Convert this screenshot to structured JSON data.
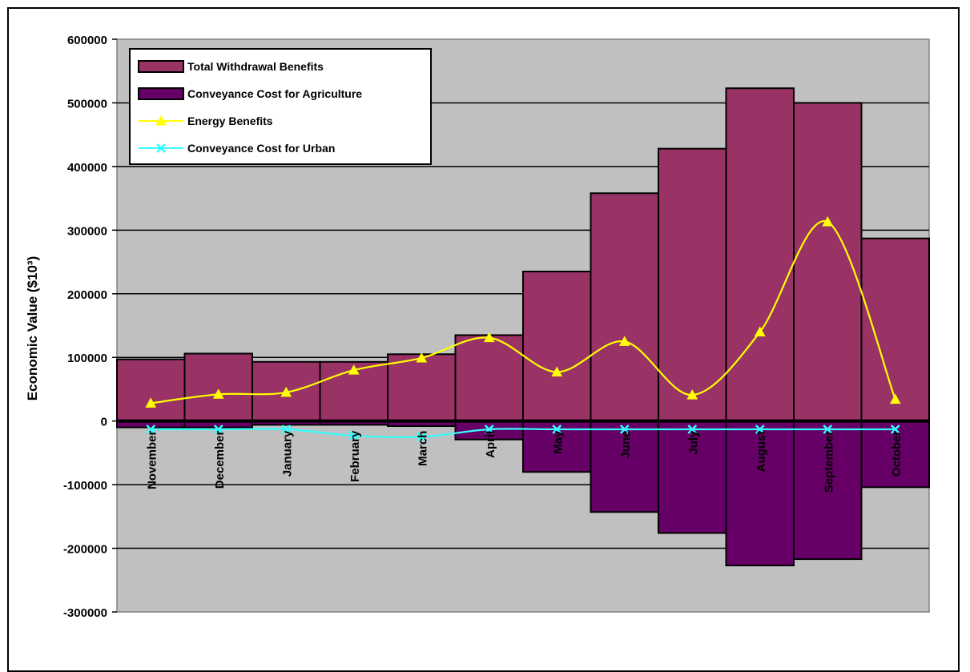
{
  "chart_data": {
    "type": "bar",
    "categories": [
      "November",
      "December",
      "January",
      "February",
      "March",
      "April",
      "May",
      "June",
      "July",
      "August",
      "September",
      "October"
    ],
    "ylabel": "Economic Value  ($10³)",
    "ylim": [
      -300000,
      600000
    ],
    "yticks": [
      600000,
      500000,
      400000,
      300000,
      200000,
      100000,
      0,
      -100000,
      -200000,
      -300000
    ],
    "ytick_labels": [
      "600000",
      "500000",
      "400000",
      "300000",
      "200000",
      "100000",
      "0",
      "-100000",
      "-200000",
      "-300000"
    ],
    "grid": true,
    "legend_position": "top-left",
    "series": [
      {
        "name": "Total Withdrawal Benefits",
        "kind": "bar",
        "color": "#993366",
        "values": [
          97000,
          106000,
          93000,
          93000,
          105000,
          135000,
          235000,
          358000,
          428000,
          523000,
          500000,
          287000
        ]
      },
      {
        "name": "Conveyance Cost for Agriculture",
        "kind": "bar",
        "color": "#660066",
        "values": [
          -10000,
          -10000,
          -6000,
          -6000,
          -8000,
          -29000,
          -80000,
          -143000,
          -176000,
          -227000,
          -217000,
          -104000
        ]
      },
      {
        "name": "Energy Benefits",
        "kind": "line",
        "marker": "triangle",
        "color": "#ffff00",
        "values": [
          28000,
          42000,
          45000,
          80000,
          99000,
          131000,
          77000,
          125000,
          41000,
          140000,
          313000,
          34000
        ]
      },
      {
        "name": "Conveyance Cost for Urban",
        "kind": "line",
        "marker": "x",
        "color": "#33ffff",
        "values": [
          -13000,
          -13000,
          -13000,
          -23000,
          -25000,
          -13000,
          -13000,
          -13000,
          -13000,
          -13000,
          -13000,
          -13000
        ]
      }
    ],
    "colors": {
      "plot_background": "#c0c0c0",
      "gridline": "#000000"
    }
  }
}
